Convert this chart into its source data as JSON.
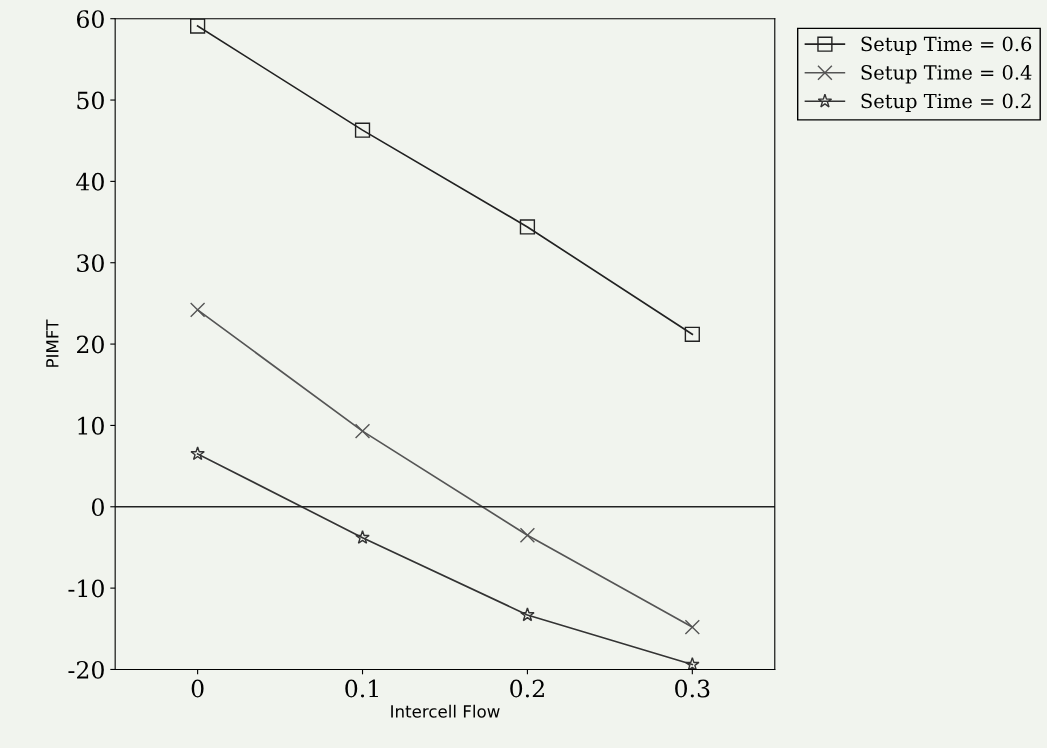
{
  "chart_data": {
    "type": "line",
    "xlabel": "Intercell Flow",
    "ylabel": "PIMFT",
    "x": [
      0,
      0.1,
      0.2,
      0.3
    ],
    "series": [
      {
        "name": "Setup Time = 0.6",
        "color": "#222222",
        "marker": "square",
        "values": [
          59.1,
          46.3,
          34.4,
          21.2
        ]
      },
      {
        "name": "Setup Time = 0.4",
        "color": "#555555",
        "marker": "cross",
        "values": [
          24.2,
          9.3,
          -3.5,
          -14.8
        ]
      },
      {
        "name": "Setup Time = 0.2",
        "color": "#333333",
        "marker": "star",
        "values": [
          6.5,
          -3.8,
          -13.3,
          -19.4
        ]
      }
    ],
    "xlim": [
      -0.05,
      0.35
    ],
    "xticks": [
      0,
      0.1,
      0.2,
      0.3
    ],
    "ylim": [
      -20,
      60
    ],
    "yticks": [
      -20,
      -10,
      0,
      10,
      20,
      30,
      40,
      50,
      60
    ],
    "ref_lines": [
      {
        "axis": "y",
        "value": 0,
        "color": "#222222"
      }
    ],
    "grid": false,
    "legend": "top right",
    "line_style": "solid"
  }
}
